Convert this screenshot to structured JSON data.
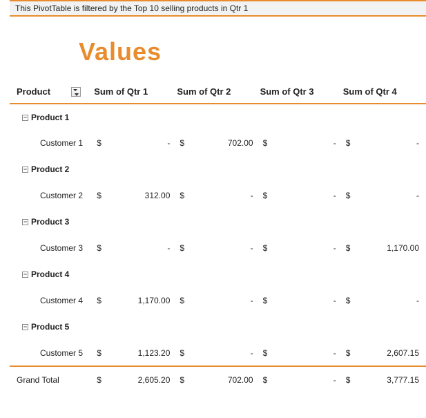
{
  "banner_text": "This PivotTable is filtered by the Top 10 selling products in Qtr 1",
  "title": "Values",
  "accent_color": "#e88c2e",
  "headers": {
    "product": "Product",
    "q1": "Sum of Qtr 1",
    "q2": "Sum of Qtr 2",
    "q3": "Sum of Qtr 3",
    "q4": "Sum of Qtr 4"
  },
  "currency_symbol": "$",
  "empty_value": "-",
  "groups": [
    {
      "product": "Product 1",
      "customer": "Customer 1",
      "q1": "-",
      "q2": "702.00",
      "q3": "-",
      "q4": "-"
    },
    {
      "product": "Product 2",
      "customer": "Customer 2",
      "q1": "312.00",
      "q2": "-",
      "q3": "-",
      "q4": "-"
    },
    {
      "product": "Product 3",
      "customer": "Customer 3",
      "q1": "-",
      "q2": "-",
      "q3": "-",
      "q4": "1,170.00"
    },
    {
      "product": "Product 4",
      "customer": "Customer 4",
      "q1": "1,170.00",
      "q2": "-",
      "q3": "-",
      "q4": "-"
    },
    {
      "product": "Product 5",
      "customer": "Customer 5",
      "q1": "1,123.20",
      "q2": "-",
      "q3": "-",
      "q4": "2,607.15"
    }
  ],
  "grand_total": {
    "label": "Grand Total",
    "q1": "2,605.20",
    "q2": "702.00",
    "q3": "-",
    "q4": "3,777.15"
  }
}
